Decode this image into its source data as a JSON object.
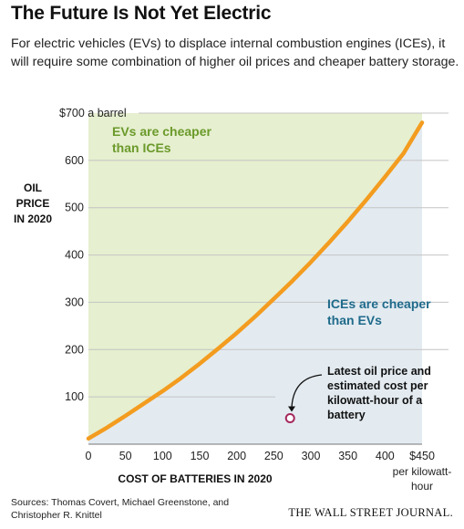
{
  "title": "The Future Is Not Yet Electric",
  "subtitle": "For electric vehicles (EVs) to displace internal combustion engines (ICEs), it will require some combination of higher oil prices and cheaper battery storage.",
  "footer": {
    "sources": "Sources: Thomas Covert, Michael Greenstone, and Christopher R. Knittel",
    "brand": "THE WALL STREET JOURNAL."
  },
  "chart_data": {
    "type": "area",
    "title": "",
    "ylabel_lines": [
      "OIL",
      "PRICE",
      "IN 2020"
    ],
    "xlabel": "COST OF BATTERIES IN 2020",
    "xlim": [
      0,
      450
    ],
    "ylim": [
      0,
      700
    ],
    "grid": true,
    "x_ticks": [
      "0",
      "50",
      "100",
      "150",
      "200",
      "250",
      "300",
      "350",
      "400",
      "$450"
    ],
    "x_unit_lines": [
      "per kilowatt-",
      "hour"
    ],
    "y_ticks": [
      "100",
      "200",
      "300",
      "400",
      "500",
      "600",
      "$700 a barrel"
    ],
    "colors": {
      "curve": "#f39c1f",
      "ev_region": "#e6efcf",
      "ice_region": "#e3ebf1",
      "ev_label": "#6b9a2b",
      "ice_label": "#1f6a8a",
      "marker": "#a6275d"
    },
    "series": [
      {
        "name": "",
        "x": [
          0,
          25,
          50,
          75,
          100,
          125,
          150,
          175,
          200,
          225,
          250,
          275,
          300,
          325,
          350,
          375,
          400,
          425,
          450
        ],
        "y": [
          12,
          35,
          60,
          86,
          112,
          140,
          170,
          202,
          235,
          270,
          307,
          345,
          385,
          427,
          471,
          517,
          565,
          615,
          680
        ]
      }
    ],
    "regions": {
      "upper_label_lines": [
        "EVs are cheaper",
        "than ICEs"
      ],
      "lower_label_lines": [
        "ICEs are cheaper",
        "than EVs"
      ]
    },
    "annotation": {
      "point": {
        "x": 272,
        "y": 55
      },
      "text_lines": [
        "Latest oil price and",
        "estimated cost per",
        "kilowatt-hour of a",
        "battery"
      ]
    }
  }
}
